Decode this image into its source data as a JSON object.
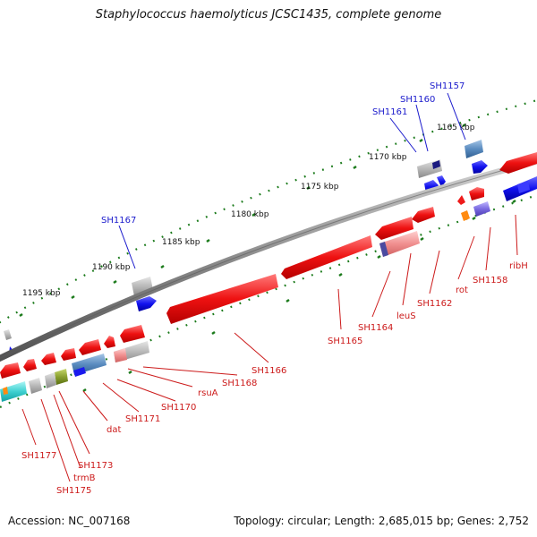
{
  "map": {
    "title": "Staphylococcus haemolyticus JCSC1435, complete genome",
    "accession": "Accession: NC_007168",
    "summary": "Topology: circular; Length: 2,685,015 bp; Genes: 2,752"
  },
  "scale_labels": [
    "1165 kbp",
    "1170 kbp",
    "1175 kbp",
    "1180 kbp",
    "1185 kbp",
    "1190 kbp",
    "1195 kbp"
  ],
  "gene_labels_outer": [
    "SH1157",
    "SH1160",
    "SH1161",
    "SH1167"
  ],
  "gene_labels_inner": [
    "ribH",
    "SH1158",
    "rot",
    "SH1162",
    "leuS",
    "SH1164",
    "SH1165",
    "SH1166",
    "SH1168",
    "rsuA",
    "SH1170",
    "SH1171",
    "dat",
    "SH1173",
    "trmB",
    "SH1175",
    "SH1177"
  ],
  "colors": {
    "outer_label": "#1a1acc",
    "inner_label": "#cc1a1a",
    "scale_dots": "#1a7a1a",
    "forward_gene": "#1a1aee",
    "reverse_gene": "#ee1a1a",
    "backbone": "#808080"
  }
}
